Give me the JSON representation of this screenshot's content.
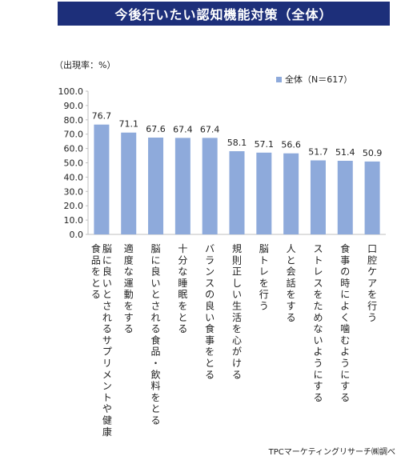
{
  "title": "今後行いたい認知機能対策（全体）",
  "unit_label": "（出現率：%）",
  "source": "TPCマーケティングリサーチ㈱調べ",
  "colors": {
    "title_bg": "#1d2f7a",
    "bar": "#8eaadb",
    "axis": "#bfbfbf"
  },
  "chart_data": {
    "type": "bar",
    "ylim": [
      0,
      100
    ],
    "y_ticks": [
      "100.0",
      "90.0",
      "80.0",
      "70.0",
      "60.0",
      "50.0",
      "40.0",
      "30.0",
      "20.0",
      "10.0",
      "0.0"
    ],
    "legend_position": "top-right",
    "grid": false,
    "categories": [
      "脳に良いとされるサプリメントや健康食品をとる",
      "適度な運動をする",
      "脳に良いとされる食品・飲料をとる",
      "十分な睡眠をとる",
      "バランスの良い食事をとる",
      "規則正しい生活を心がける",
      "脳トレを行う",
      "人と会話をする",
      "ストレスをためないようにする",
      "食事の時によく噛むようにする",
      "口腔ケアを行う"
    ],
    "series": [
      {
        "name": "全体（N＝617）",
        "values": [
          76.7,
          71.1,
          67.6,
          67.4,
          67.4,
          58.1,
          57.1,
          56.6,
          51.7,
          51.4,
          50.9
        ]
      }
    ],
    "data_labels": [
      "76.7",
      "71.1",
      "67.6",
      "67.4",
      "67.4",
      "58.1",
      "57.1",
      "56.6",
      "51.7",
      "51.4",
      "50.9"
    ]
  }
}
